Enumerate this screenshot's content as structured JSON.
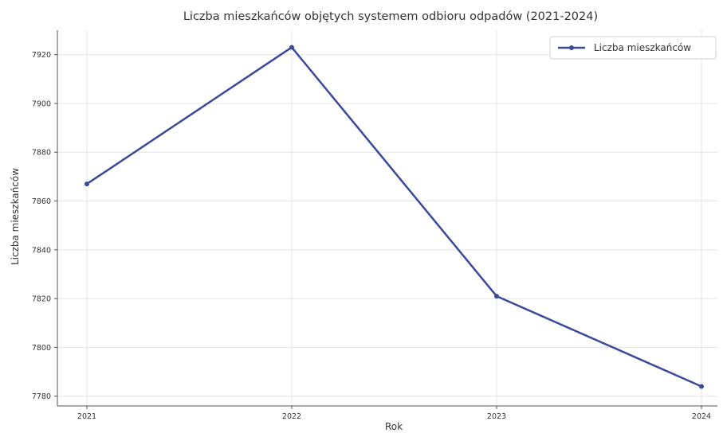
{
  "chart_data": {
    "type": "line",
    "title": "Liczba mieszkańców objętych systemem odbioru odpadów (2021-2024)",
    "xlabel": "Rok",
    "ylabel": "Liczba mieszkańców",
    "x": [
      "2021",
      "2022",
      "2023",
      "2024"
    ],
    "series": [
      {
        "name": "Liczba mieszkańców",
        "values": [
          7867,
          7923,
          7821,
          7784
        ],
        "color": "#3a4a9a"
      }
    ],
    "yticks": [
      7780,
      7800,
      7820,
      7840,
      7860,
      7880,
      7900,
      7920
    ],
    "ylim": [
      7776,
      7930
    ],
    "grid": true,
    "legend_position": "top-right"
  }
}
